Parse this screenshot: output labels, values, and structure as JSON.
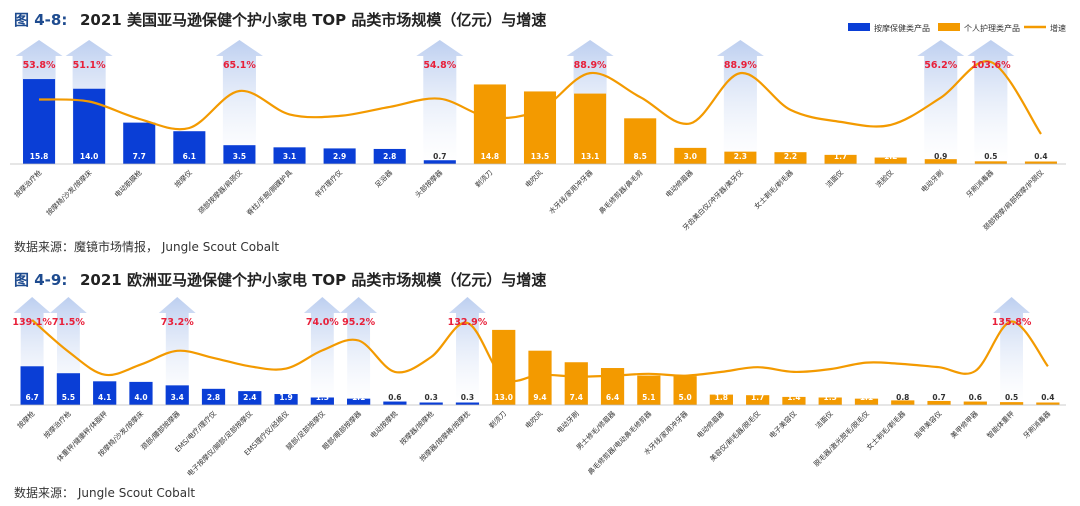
{
  "colors": {
    "massage": "#0a3ed6",
    "personal": "#f39a00",
    "growth": "#f39a00",
    "growth_label": "#e8203a",
    "arrow": "#c9d8f2",
    "title_tag": "#1e4b8f"
  },
  "chart_data": [
    {
      "type": "bar",
      "fig_label": "图 4-8:",
      "title": "2021 美国亚马逊保健个护小家电 TOP 品类市场规模（亿元）与增速",
      "legend": [
        "按摩保健类产品",
        "个人护理类产品",
        "增速"
      ],
      "legend_position": "top-right",
      "source": "数据来源：魔镜市场情报， Jungle Scout Cobalt",
      "categories": [
        "按摩治疗枪",
        "按摩椅/沙发/按摩床",
        "电动筋膜枪",
        "按摩仪",
        "颈部按摩器/肩颈仪",
        "脊柱/手腕/脚踝护具",
        "伴疗理疗仪",
        "足浴器",
        "头部按摩器",
        "剃须刀",
        "电吹风",
        "水牙线/家用冲牙器",
        "鼻毛修剪器/鼻毛剪",
        "电动修眉器",
        "牙齿美白仪/冲牙器/美牙仪",
        "女士剃毛/剃毛器",
        "洁面仪",
        "洗脸仪",
        "电动牙刷",
        "牙刷消毒器",
        "颈部按摩/肩部按摩/护颈仪"
      ],
      "category_group": [
        "massage",
        "massage",
        "massage",
        "massage",
        "massage",
        "massage",
        "massage",
        "massage",
        "massage",
        "personal",
        "personal",
        "personal",
        "personal",
        "personal",
        "personal",
        "personal",
        "personal",
        "personal",
        "personal",
        "personal",
        "personal"
      ],
      "values": [
        15.8,
        14.0,
        7.7,
        6.1,
        3.5,
        3.1,
        2.9,
        2.8,
        0.7,
        14.8,
        13.5,
        13.1,
        8.5,
        3.0,
        2.3,
        2.2,
        1.7,
        1.2,
        0.9,
        0.5,
        0.4
      ],
      "value_labels": [
        "15.8",
        "14.0",
        "7.7",
        "6.1",
        "3.5",
        "3.1",
        "2.9",
        "2.8",
        "0.7",
        "14.8",
        "13.5",
        "13.1",
        "8.5",
        "3.0",
        "2.3",
        "2.2",
        "1.7",
        "1.2",
        "0.9",
        "0.5",
        "0.4"
      ],
      "growth_pct": [
        53.8,
        51.1,
        28.0,
        16.0,
        65.1,
        34.0,
        32.0,
        44.0,
        54.8,
        30.0,
        40.0,
        88.9,
        57.0,
        22.0,
        88.9,
        40.0,
        24.0,
        20.0,
        56.2,
        103.6,
        8.0
      ],
      "highlighted": [
        {
          "index": 0,
          "label": "53.8%"
        },
        {
          "index": 1,
          "label": "51.1%"
        },
        {
          "index": 4,
          "label": "65.1%"
        },
        {
          "index": 8,
          "label": "54.8%"
        },
        {
          "index": 11,
          "label": "88.9%"
        },
        {
          "index": 14,
          "label": "88.9%"
        },
        {
          "index": 18,
          "label": "56.2%"
        },
        {
          "index": 19,
          "label": "103.6%"
        }
      ],
      "ylim": [
        0,
        16
      ]
    },
    {
      "type": "bar",
      "fig_label": "图 4-9:",
      "title": "2021 欧洲亚马逊保健个护小家电 TOP 品类市场规模（亿元）与增速",
      "source": "数据来源： Jungle Scout Cobalt",
      "categories": [
        "按摩枪",
        "按摩治疗枪",
        "体重秤/健康秤/体脂秤",
        "按摩椅/沙发/按摩床",
        "颈部/腰部按摩器",
        "EMS/电疗/理疗仪",
        "电子按摩仪/脚部/足部按摩仪",
        "EMS理疗仪/经络仪",
        "腿部/足部按摩仪",
        "眼部/眼部按摩器",
        "电动按摩梳",
        "按摩器/按摩枪",
        "按摩器/按摩棒/按摩枕",
        "剃须刀",
        "电吹风",
        "电动牙刷",
        "男士修毛/修眉器",
        "鼻毛修剪器/电动鼻毛修剪器",
        "水牙线/家用冲牙器",
        "电动修眉器",
        "美容仪/剃毛器/脱毛仪",
        "电子美容仪",
        "洁面仪",
        "脱毛器/激光脱毛/脱毛仪",
        "女士剃毛/剃毛器",
        "指甲美容仪",
        "美甲修甲器",
        "智能体重秤",
        "牙刷消毒器"
      ],
      "category_group": [
        "massage",
        "massage",
        "massage",
        "massage",
        "massage",
        "massage",
        "massage",
        "massage",
        "massage",
        "massage",
        "massage",
        "massage",
        "massage",
        "personal",
        "personal",
        "personal",
        "personal",
        "personal",
        "personal",
        "personal",
        "personal",
        "personal",
        "personal",
        "personal",
        "personal",
        "personal",
        "personal",
        "personal",
        "personal"
      ],
      "values": [
        6.7,
        5.5,
        4.1,
        4.0,
        3.4,
        2.8,
        2.4,
        1.9,
        1.3,
        1.1,
        0.6,
        0.3,
        0.3,
        13.0,
        9.4,
        7.4,
        6.4,
        5.1,
        5.0,
        1.8,
        1.7,
        1.4,
        1.3,
        1.1,
        0.8,
        0.7,
        0.6,
        0.5,
        0.4
      ],
      "value_labels": [
        "6.7",
        "5.5",
        "4.1",
        "4.0",
        "3.4",
        "2.8",
        "2.4",
        "1.9",
        "1.3",
        "1.1",
        "0.6",
        "0.3",
        "0.3",
        "13.0",
        "9.4",
        "7.4",
        "6.4",
        "5.1",
        "5.0",
        "1.8",
        "1.7",
        "1.4",
        "1.3",
        "1.1",
        "0.8",
        "0.7",
        "0.6",
        "0.5",
        "0.4"
      ],
      "growth_pct": [
        139.1,
        71.5,
        22.0,
        44.0,
        73.2,
        58.0,
        40.0,
        35.0,
        74.0,
        95.2,
        28.0,
        60.0,
        132.9,
        15.0,
        22.0,
        18.0,
        20.0,
        24.0,
        20.0,
        28.0,
        38.0,
        28.0,
        34.0,
        48.0,
        45.0,
        38.0,
        30.0,
        135.8,
        40.0
      ],
      "highlighted": [
        {
          "index": 0,
          "label": "139.1%"
        },
        {
          "index": 1,
          "label": "71.5%"
        },
        {
          "index": 4,
          "label": "73.2%"
        },
        {
          "index": 8,
          "label": "74.0%"
        },
        {
          "index": 9,
          "label": "95.2%"
        },
        {
          "index": 12,
          "label": "132.9%"
        },
        {
          "index": 27,
          "label": "135.8%"
        }
      ],
      "ylim": [
        0,
        13.5
      ]
    }
  ]
}
